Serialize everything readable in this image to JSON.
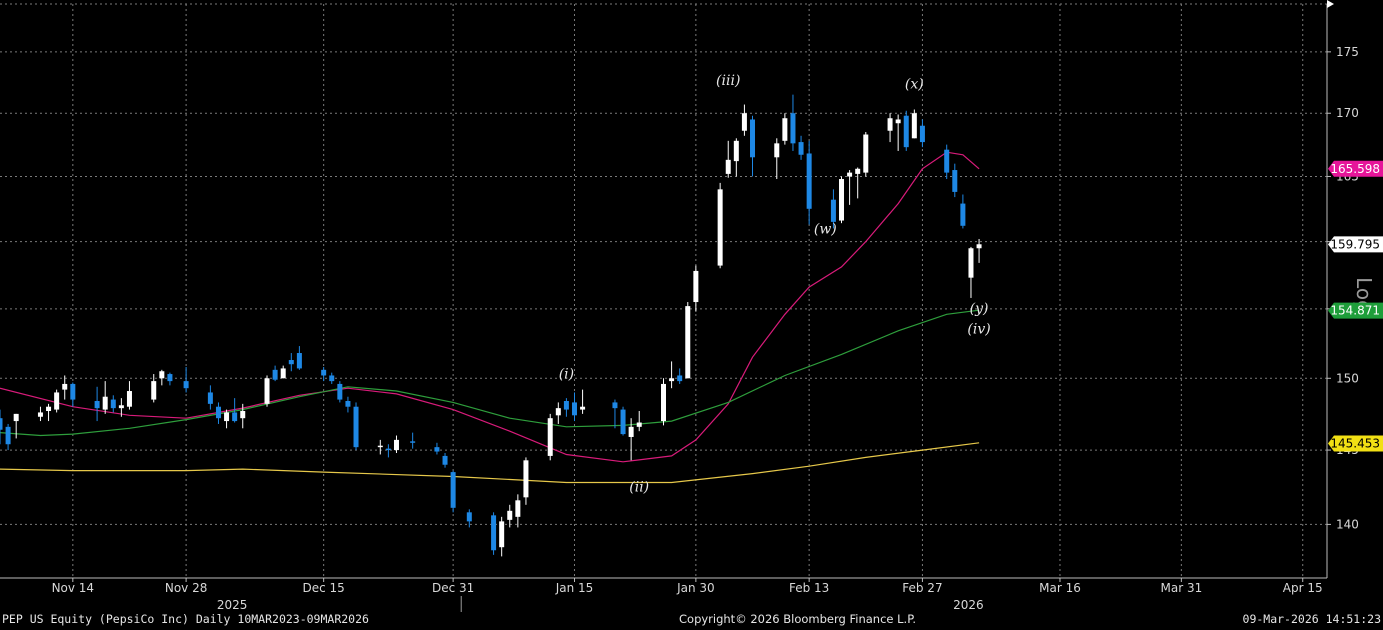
{
  "footer": {
    "left": "PEP US Equity (PepsiCo Inc) Daily 10MAR2023-09MAR2026",
    "middle": "Copyright© 2026 Bloomberg Finance L.P.",
    "right": "09-Mar-2026 14:51:23"
  },
  "colors": {
    "up": "#ffffff",
    "down": "#1e88e5",
    "ma_pink": "#d81b7a",
    "ma_green": "#2e9e3c",
    "ma_yellow": "#e6c84a",
    "grid": "#7a7a7a"
  },
  "chart_data": {
    "type": "candlestick",
    "y_scale": "log",
    "y_scale_label": "Log",
    "ylim": [
      136.5,
      179
    ],
    "y_ticks": [
      140,
      145,
      150,
      155,
      160,
      165,
      170,
      175
    ],
    "y_tick_labels": [
      "140",
      "145",
      "150",
      "155",
      "160",
      "165",
      "170",
      "175"
    ],
    "xlim": [
      "2025-11-05",
      "2026-04-18"
    ],
    "x_ticks": [
      "2025-11-14",
      "2025-11-28",
      "2025-12-15",
      "2025-12-31",
      "2026-01-15",
      "2026-01-30",
      "2026-02-13",
      "2026-02-27",
      "2026-03-16",
      "2026-03-31",
      "2026-04-15"
    ],
    "x_tick_labels": [
      "Nov 14",
      "Nov 28",
      "Dec 15",
      "Dec 31",
      "Jan 15",
      "Jan 30",
      "Feb 13",
      "Feb 27",
      "Mar 16",
      "Mar 31",
      "Apr 15"
    ],
    "year_labels": [
      {
        "date": "2025-11-28",
        "label": "2025"
      },
      {
        "date": "2026-02-27",
        "label": "2026"
      }
    ],
    "year_divider": "2026-01-01",
    "grid": true,
    "price_tags": [
      {
        "value": 165.598,
        "label": "165.598",
        "bg": "#e6159a",
        "fg": "#ffffff"
      },
      {
        "value": 159.795,
        "label": "159.795",
        "bg": "#ffffff",
        "fg": "#000000"
      },
      {
        "value": 154.871,
        "label": "154.871",
        "bg": "#1e9e3a",
        "fg": "#ffffff"
      },
      {
        "value": 145.453,
        "label": "145.453",
        "bg": "#f2e014",
        "fg": "#000000"
      }
    ],
    "wave_labels": [
      {
        "date": "2026-01-14",
        "value": 150,
        "label": "(i)"
      },
      {
        "date": "2026-01-23",
        "value": 142.2,
        "label": "(ii)"
      },
      {
        "date": "2026-02-03",
        "value": 172.3,
        "label": "(iii)"
      },
      {
        "date": "2026-02-15",
        "value": 160.6,
        "label": "(w)"
      },
      {
        "date": "2026-02-26",
        "value": 172.0,
        "label": "(x)"
      },
      {
        "date": "2026-03-06",
        "value": 154.7,
        "label": "(y)"
      },
      {
        "date": "2026-03-06",
        "value": 153.2,
        "label": "(iv)"
      }
    ],
    "candles": [
      {
        "date": "2025-11-05",
        "open": 147.2,
        "high": 147.8,
        "low": 145.4,
        "close": 146.4
      },
      {
        "date": "2025-11-06",
        "open": 146.6,
        "high": 146.8,
        "low": 145.0,
        "close": 145.4
      },
      {
        "date": "2025-11-07",
        "open": 147.0,
        "high": 147.5,
        "low": 145.8,
        "close": 147.5
      },
      {
        "date": "2025-11-10",
        "open": 147.3,
        "high": 148.0,
        "low": 147.0,
        "close": 147.6
      },
      {
        "date": "2025-11-11",
        "open": 147.7,
        "high": 148.2,
        "low": 147.0,
        "close": 148.0
      },
      {
        "date": "2025-11-12",
        "open": 147.8,
        "high": 149.2,
        "low": 147.6,
        "close": 149.0
      },
      {
        "date": "2025-11-13",
        "open": 149.2,
        "high": 150.2,
        "low": 148.5,
        "close": 149.6
      },
      {
        "date": "2025-11-14",
        "open": 149.6,
        "high": 149.7,
        "low": 148.0,
        "close": 148.5
      },
      {
        "date": "2025-11-17",
        "open": 148.4,
        "high": 149.4,
        "low": 147.0,
        "close": 147.9
      },
      {
        "date": "2025-11-18",
        "open": 147.8,
        "high": 149.8,
        "low": 147.5,
        "close": 148.7
      },
      {
        "date": "2025-11-19",
        "open": 148.5,
        "high": 148.8,
        "low": 147.6,
        "close": 147.9
      },
      {
        "date": "2025-11-20",
        "open": 147.9,
        "high": 148.6,
        "low": 147.3,
        "close": 148.1
      },
      {
        "date": "2025-11-21",
        "open": 148.0,
        "high": 149.8,
        "low": 147.8,
        "close": 149.1
      },
      {
        "date": "2025-11-24",
        "open": 148.5,
        "high": 150.3,
        "low": 148.3,
        "close": 149.8
      },
      {
        "date": "2025-11-25",
        "open": 150.0,
        "high": 150.6,
        "low": 149.5,
        "close": 150.5
      },
      {
        "date": "2025-11-26",
        "open": 150.3,
        "high": 150.4,
        "low": 149.5,
        "close": 149.8
      },
      {
        "date": "2025-11-28",
        "open": 149.8,
        "high": 150.8,
        "low": 149.0,
        "close": 149.3
      },
      {
        "date": "2025-12-01",
        "open": 149.0,
        "high": 149.5,
        "low": 147.8,
        "close": 148.2
      },
      {
        "date": "2025-12-02",
        "open": 148.0,
        "high": 148.3,
        "low": 146.8,
        "close": 147.2
      },
      {
        "date": "2025-12-03",
        "open": 147.0,
        "high": 147.8,
        "low": 146.5,
        "close": 147.6
      },
      {
        "date": "2025-12-04",
        "open": 147.6,
        "high": 148.6,
        "low": 146.9,
        "close": 147.0
      },
      {
        "date": "2025-12-05",
        "open": 147.2,
        "high": 148.2,
        "low": 146.5,
        "close": 147.7
      },
      {
        "date": "2025-12-08",
        "open": 148.2,
        "high": 150.2,
        "low": 148.0,
        "close": 150.0
      },
      {
        "date": "2025-12-09",
        "open": 150.6,
        "high": 150.9,
        "low": 149.8,
        "close": 149.9
      },
      {
        "date": "2025-12-10",
        "open": 150.0,
        "high": 150.9,
        "low": 150.0,
        "close": 150.7
      },
      {
        "date": "2025-12-11",
        "open": 151.3,
        "high": 151.8,
        "low": 150.5,
        "close": 151.0
      },
      {
        "date": "2025-12-12",
        "open": 151.8,
        "high": 152.3,
        "low": 150.6,
        "close": 150.7
      },
      {
        "date": "2025-12-15",
        "open": 150.6,
        "high": 150.8,
        "low": 149.8,
        "close": 150.2
      },
      {
        "date": "2025-12-16",
        "open": 150.2,
        "high": 150.4,
        "low": 149.6,
        "close": 149.8
      },
      {
        "date": "2025-12-17",
        "open": 149.6,
        "high": 149.8,
        "low": 148.3,
        "close": 148.5
      },
      {
        "date": "2025-12-18",
        "open": 148.4,
        "high": 148.7,
        "low": 147.6,
        "close": 148.0
      },
      {
        "date": "2025-12-19",
        "open": 148.0,
        "high": 148.3,
        "low": 145.0,
        "close": 145.2
      },
      {
        "date": "2025-12-22",
        "open": 145.2,
        "high": 145.7,
        "low": 144.7,
        "close": 145.3
      },
      {
        "date": "2025-12-23",
        "open": 145.1,
        "high": 145.4,
        "low": 144.5,
        "close": 145.0
      },
      {
        "date": "2025-12-24",
        "open": 145.0,
        "high": 146.0,
        "low": 144.8,
        "close": 145.7
      },
      {
        "date": "2025-12-26",
        "open": 145.6,
        "high": 146.2,
        "low": 145.1,
        "close": 145.5
      },
      {
        "date": "2025-12-29",
        "open": 145.2,
        "high": 145.5,
        "low": 144.7,
        "close": 144.9
      },
      {
        "date": "2025-12-30",
        "open": 144.6,
        "high": 144.8,
        "low": 143.8,
        "close": 144.0
      },
      {
        "date": "2025-12-31",
        "open": 143.5,
        "high": 143.6,
        "low": 140.8,
        "close": 141.1
      },
      {
        "date": "2026-01-02",
        "open": 140.8,
        "high": 141.0,
        "low": 139.8,
        "close": 140.2
      },
      {
        "date": "2026-01-05",
        "open": 140.6,
        "high": 140.8,
        "low": 138.0,
        "close": 138.3
      },
      {
        "date": "2026-01-06",
        "open": 138.5,
        "high": 140.5,
        "low": 137.9,
        "close": 140.2
      },
      {
        "date": "2026-01-07",
        "open": 140.3,
        "high": 141.3,
        "low": 139.8,
        "close": 140.9
      },
      {
        "date": "2026-01-08",
        "open": 140.5,
        "high": 142.0,
        "low": 139.8,
        "close": 141.6
      },
      {
        "date": "2026-01-09",
        "open": 141.8,
        "high": 144.5,
        "low": 141.3,
        "close": 144.3
      },
      {
        "date": "2026-01-12",
        "open": 144.6,
        "high": 147.5,
        "low": 144.3,
        "close": 147.2
      },
      {
        "date": "2026-01-13",
        "open": 147.4,
        "high": 148.3,
        "low": 146.8,
        "close": 147.9
      },
      {
        "date": "2026-01-14",
        "open": 148.4,
        "high": 148.6,
        "low": 147.3,
        "close": 147.8
      },
      {
        "date": "2026-01-15",
        "open": 148.3,
        "high": 149.0,
        "low": 147.0,
        "close": 147.4
      },
      {
        "date": "2026-01-16",
        "open": 147.8,
        "high": 149.2,
        "low": 147.5,
        "close": 148.0
      },
      {
        "date": "2026-01-20",
        "open": 148.3,
        "high": 148.5,
        "low": 146.5,
        "close": 147.9
      },
      {
        "date": "2026-01-21",
        "open": 147.8,
        "high": 148.0,
        "low": 146.0,
        "close": 146.1
      },
      {
        "date": "2026-01-22",
        "open": 145.9,
        "high": 147.2,
        "low": 144.3,
        "close": 146.6
      },
      {
        "date": "2026-01-23",
        "open": 146.6,
        "high": 147.7,
        "low": 146.3,
        "close": 146.9
      },
      {
        "date": "2026-01-26",
        "open": 147.0,
        "high": 150.0,
        "low": 146.7,
        "close": 149.6
      },
      {
        "date": "2026-01-27",
        "open": 149.8,
        "high": 151.2,
        "low": 149.3,
        "close": 150.0
      },
      {
        "date": "2026-01-28",
        "open": 150.2,
        "high": 150.7,
        "low": 149.6,
        "close": 149.8
      },
      {
        "date": "2026-01-29",
        "open": 150.0,
        "high": 155.5,
        "low": 150.0,
        "close": 155.2
      },
      {
        "date": "2026-01-30",
        "open": 155.5,
        "high": 158.2,
        "low": 154.8,
        "close": 157.8
      },
      {
        "date": "2026-02-02",
        "open": 158.2,
        "high": 164.5,
        "low": 158.0,
        "close": 164.0
      },
      {
        "date": "2026-02-03",
        "open": 165.2,
        "high": 167.8,
        "low": 164.9,
        "close": 166.3
      },
      {
        "date": "2026-02-04",
        "open": 166.2,
        "high": 168.0,
        "low": 165.0,
        "close": 167.8
      },
      {
        "date": "2026-02-05",
        "open": 168.6,
        "high": 170.7,
        "low": 168.2,
        "close": 170.0
      },
      {
        "date": "2026-02-06",
        "open": 169.5,
        "high": 169.8,
        "low": 165.0,
        "close": 166.5
      },
      {
        "date": "2026-02-09",
        "open": 166.5,
        "high": 168.0,
        "low": 164.8,
        "close": 167.6
      },
      {
        "date": "2026-02-10",
        "open": 167.8,
        "high": 170.0,
        "low": 167.5,
        "close": 169.6
      },
      {
        "date": "2026-02-11",
        "open": 170.0,
        "high": 171.5,
        "low": 167.0,
        "close": 167.6
      },
      {
        "date": "2026-02-12",
        "open": 167.7,
        "high": 168.2,
        "low": 166.3,
        "close": 166.7
      },
      {
        "date": "2026-02-13",
        "open": 166.8,
        "high": 167.8,
        "low": 161.3,
        "close": 162.5
      },
      {
        "date": "2026-02-16",
        "open": 163.2,
        "high": 164.0,
        "low": 161.0,
        "close": 161.5
      },
      {
        "date": "2026-02-17",
        "open": 161.6,
        "high": 165.0,
        "low": 161.4,
        "close": 164.8
      },
      {
        "date": "2026-02-18",
        "open": 165.0,
        "high": 165.5,
        "low": 162.8,
        "close": 165.3
      },
      {
        "date": "2026-02-19",
        "open": 165.2,
        "high": 165.7,
        "low": 163.3,
        "close": 165.6
      },
      {
        "date": "2026-02-20",
        "open": 165.3,
        "high": 168.5,
        "low": 165.0,
        "close": 168.3
      },
      {
        "date": "2026-02-23",
        "open": 168.6,
        "high": 170.0,
        "low": 167.7,
        "close": 169.6
      },
      {
        "date": "2026-02-24",
        "open": 169.2,
        "high": 169.9,
        "low": 167.0,
        "close": 169.5
      },
      {
        "date": "2026-02-25",
        "open": 169.8,
        "high": 170.2,
        "low": 167.0,
        "close": 167.3
      },
      {
        "date": "2026-02-26",
        "open": 168.0,
        "high": 170.3,
        "low": 168.0,
        "close": 170.0
      },
      {
        "date": "2026-02-27",
        "open": 169.0,
        "high": 169.5,
        "low": 167.3,
        "close": 167.7
      },
      {
        "date": "2026-03-02",
        "open": 167.1,
        "high": 167.5,
        "low": 164.8,
        "close": 165.3
      },
      {
        "date": "2026-03-03",
        "open": 165.5,
        "high": 166.0,
        "low": 163.4,
        "close": 163.8
      },
      {
        "date": "2026-03-04",
        "open": 162.9,
        "high": 163.6,
        "low": 161.0,
        "close": 161.2
      },
      {
        "date": "2026-03-05",
        "open": 157.3,
        "high": 159.6,
        "low": 155.8,
        "close": 159.5
      },
      {
        "date": "2026-03-06",
        "open": 159.5,
        "high": 160.2,
        "low": 158.4,
        "close": 159.8
      }
    ],
    "moving_averages": [
      {
        "color_key": "ma_pink",
        "last_value": 165.598,
        "points": [
          [
            "2025-11-05",
            149.3
          ],
          [
            "2025-11-14",
            148.0
          ],
          [
            "2025-11-21",
            147.4
          ],
          [
            "2025-11-28",
            147.2
          ],
          [
            "2025-12-05",
            147.9
          ],
          [
            "2025-12-12",
            148.8
          ],
          [
            "2025-12-18",
            149.3
          ],
          [
            "2025-12-24",
            148.9
          ],
          [
            "2025-12-31",
            147.8
          ],
          [
            "2026-01-07",
            146.3
          ],
          [
            "2026-01-14",
            144.7
          ],
          [
            "2026-01-21",
            144.2
          ],
          [
            "2026-01-27",
            144.6
          ],
          [
            "2026-01-30",
            145.7
          ],
          [
            "2026-02-03",
            148.2
          ],
          [
            "2026-02-06",
            151.5
          ],
          [
            "2026-02-10",
            154.6
          ],
          [
            "2026-02-13",
            156.6
          ],
          [
            "2026-02-17",
            158.1
          ],
          [
            "2026-02-20",
            160.0
          ],
          [
            "2026-02-24",
            162.9
          ],
          [
            "2026-02-27",
            165.6
          ],
          [
            "2026-03-02",
            166.9
          ],
          [
            "2026-03-04",
            166.7
          ],
          [
            "2026-03-06",
            165.6
          ]
        ]
      },
      {
        "color_key": "ma_green",
        "last_value": 154.871,
        "points": [
          [
            "2025-11-05",
            146.2
          ],
          [
            "2025-11-10",
            146.0
          ],
          [
            "2025-11-14",
            146.1
          ],
          [
            "2025-11-21",
            146.5
          ],
          [
            "2025-11-28",
            147.1
          ],
          [
            "2025-12-05",
            147.8
          ],
          [
            "2025-12-12",
            148.7
          ],
          [
            "2025-12-18",
            149.4
          ],
          [
            "2025-12-24",
            149.1
          ],
          [
            "2025-12-31",
            148.3
          ],
          [
            "2026-01-07",
            147.2
          ],
          [
            "2026-01-14",
            146.6
          ],
          [
            "2026-01-21",
            146.7
          ],
          [
            "2026-01-27",
            147.0
          ],
          [
            "2026-02-03",
            148.3
          ],
          [
            "2026-02-10",
            150.2
          ],
          [
            "2026-02-17",
            151.7
          ],
          [
            "2026-02-24",
            153.4
          ],
          [
            "2026-03-02",
            154.6
          ],
          [
            "2026-03-06",
            154.9
          ]
        ]
      },
      {
        "color_key": "ma_yellow",
        "last_value": 145.453,
        "points": [
          [
            "2025-11-05",
            143.7
          ],
          [
            "2025-11-14",
            143.6
          ],
          [
            "2025-11-28",
            143.6
          ],
          [
            "2025-12-05",
            143.7
          ],
          [
            "2025-12-15",
            143.5
          ],
          [
            "2025-12-31",
            143.2
          ],
          [
            "2026-01-14",
            142.8
          ],
          [
            "2026-01-27",
            142.8
          ],
          [
            "2026-02-06",
            143.4
          ],
          [
            "2026-02-13",
            143.9
          ],
          [
            "2026-02-20",
            144.5
          ],
          [
            "2026-02-27",
            145.0
          ],
          [
            "2026-03-06",
            145.5
          ]
        ]
      }
    ]
  }
}
